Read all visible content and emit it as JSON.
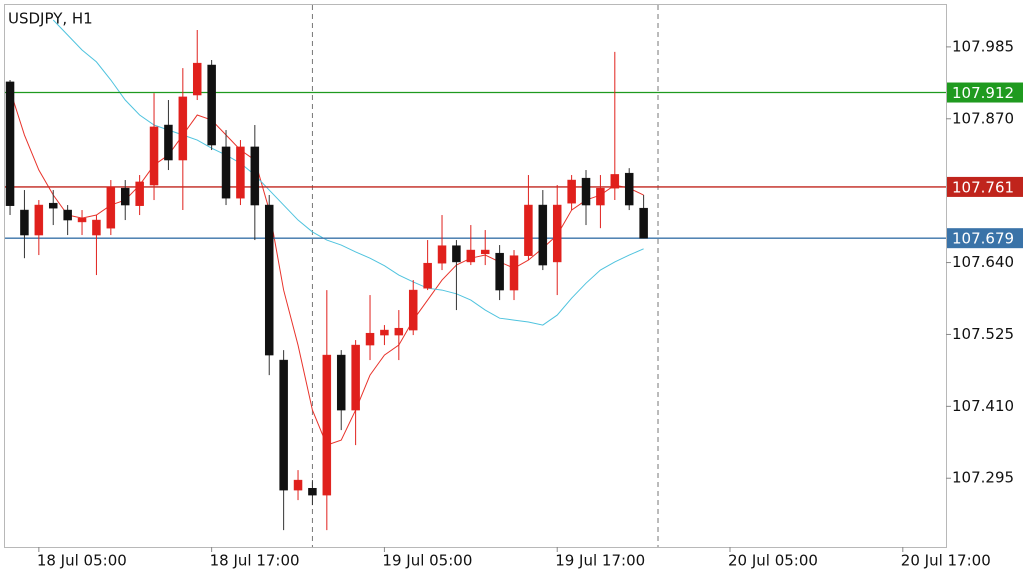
{
  "chart_data": {
    "type": "candlestick",
    "title": "USDJPY, H1",
    "up_color": "#e0201c",
    "down_color": "#111111",
    "open": [
      107.929,
      107.724,
      107.684,
      107.735,
      107.724,
      107.705,
      107.684,
      107.695,
      107.759,
      107.731,
      107.764,
      107.86,
      107.804,
      107.908,
      107.956,
      107.825,
      107.743,
      107.825,
      107.732,
      107.484,
      107.276,
      107.279,
      107.268,
      107.492,
      107.404,
      107.508,
      107.524,
      107.524,
      107.532,
      107.599,
      107.639,
      107.667,
      107.641,
      107.654,
      107.655,
      107.596,
      107.651,
      107.732,
      107.641,
      107.735,
      107.775,
      107.732,
      107.759,
      107.783,
      107.727
    ],
    "high": [
      107.932,
      107.756,
      107.74,
      107.756,
      107.732,
      107.724,
      107.716,
      107.772,
      107.772,
      107.78,
      107.911,
      107.9,
      107.951,
      108.012,
      107.964,
      107.852,
      107.836,
      107.86,
      107.748,
      107.5,
      107.308,
      107.292,
      107.596,
      107.5,
      107.516,
      107.588,
      107.54,
      107.564,
      107.612,
      107.676,
      107.716,
      107.676,
      107.7,
      107.692,
      107.668,
      107.66,
      107.78,
      107.756,
      107.764,
      107.78,
      107.788,
      107.78,
      107.977,
      107.791,
      107.748
    ],
    "low": [
      107.716,
      107.647,
      107.652,
      107.7,
      107.684,
      107.684,
      107.62,
      107.684,
      107.708,
      107.716,
      107.74,
      107.788,
      107.724,
      107.9,
      107.82,
      107.732,
      107.732,
      107.676,
      107.46,
      107.212,
      107.26,
      107.252,
      107.212,
      107.372,
      107.348,
      107.484,
      107.508,
      107.484,
      107.524,
      107.596,
      107.628,
      107.564,
      107.636,
      107.636,
      107.58,
      107.58,
      107.644,
      107.628,
      107.588,
      107.724,
      107.7,
      107.695,
      107.74,
      107.724,
      107.679
    ],
    "close": [
      107.731,
      107.684,
      107.732,
      107.727,
      107.708,
      107.711,
      107.708,
      107.761,
      107.732,
      107.769,
      107.857,
      107.804,
      107.905,
      107.959,
      107.828,
      107.743,
      107.825,
      107.732,
      107.492,
      107.276,
      107.292,
      107.268,
      107.492,
      107.404,
      107.508,
      107.527,
      107.532,
      107.535,
      107.596,
      107.639,
      107.667,
      107.641,
      107.66,
      107.66,
      107.596,
      107.651,
      107.732,
      107.636,
      107.732,
      107.772,
      107.732,
      107.759,
      107.781,
      107.732,
      107.679
    ],
    "series": [
      {
        "color": "#e8332b",
        "values": [
          107.916,
          107.844,
          107.788,
          107.748,
          107.716,
          107.711,
          107.716,
          107.732,
          107.74,
          107.764,
          107.796,
          107.812,
          107.844,
          107.876,
          107.868,
          107.844,
          107.82,
          107.804,
          107.724,
          107.596,
          107.508,
          107.404,
          107.348,
          107.356,
          107.404,
          107.46,
          107.492,
          107.508,
          107.548,
          107.58,
          107.612,
          107.636,
          107.647,
          107.652,
          107.641,
          107.631,
          107.644,
          107.663,
          107.684,
          107.724,
          107.74,
          107.748,
          107.764,
          107.759,
          107.748
        ]
      },
      {
        "color": "#4fc3de",
        "values": [
          null,
          null,
          null,
          108.028,
          108.004,
          107.98,
          107.961,
          107.932,
          107.9,
          107.876,
          107.86,
          107.852,
          107.844,
          107.836,
          107.823,
          107.812,
          107.799,
          107.78,
          107.756,
          107.732,
          107.708,
          107.689,
          107.676,
          107.668,
          107.657,
          107.647,
          107.635,
          107.62,
          107.609,
          107.599,
          107.596,
          107.59,
          107.58,
          107.564,
          107.551,
          107.548,
          107.545,
          107.54,
          107.556,
          107.583,
          107.607,
          107.628,
          107.641,
          107.652,
          107.662
        ]
      }
    ],
    "levels": [
      {
        "value": 107.912,
        "color": "#1f9a1f"
      },
      {
        "value": 107.761,
        "color": "#c0241c"
      },
      {
        "value": 107.679,
        "color": "#3a73a8"
      }
    ],
    "separators": [
      21,
      45
    ],
    "xlim": [
      -0.35,
      65
    ],
    "xticks": [
      {
        "value": 2,
        "label": "18 Jul 05:00"
      },
      {
        "value": 14,
        "label": "18 Jul 17:00"
      },
      {
        "value": 26,
        "label": "19 Jul 05:00"
      },
      {
        "value": 38,
        "label": "19 Jul 17:00"
      },
      {
        "value": 50,
        "label": "20 Jul 05:00"
      },
      {
        "value": 62,
        "label": "20 Jul 17:00"
      }
    ],
    "ylim": [
      107.185,
      108.052
    ],
    "yticks": [
      107.985,
      {
        "value": 107.87,
        "label": "107.870"
      },
      {
        "value": 107.64,
        "label": "107.640"
      },
      107.525,
      {
        "value": 107.41,
        "label": "107.410"
      },
      107.295
    ]
  }
}
